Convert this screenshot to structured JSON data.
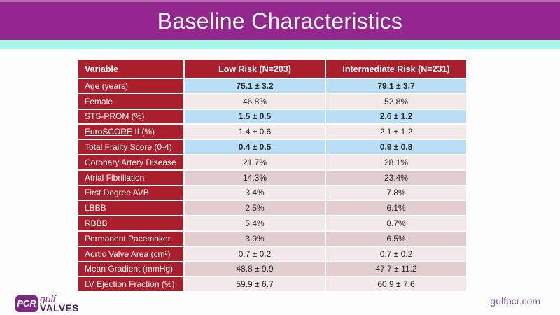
{
  "slide": {
    "title": "Baseline Characteristics",
    "footer_link": "gulfpcr.com",
    "logo": {
      "pcr": "PCR",
      "gulf": "gulf",
      "valves": "VALVES"
    }
  },
  "colors": {
    "title_bar": "#93278F",
    "title_bar_top": "#B768B3",
    "accent_strip": "#A5F7E8",
    "table_red": "#AB1E2C",
    "highlight_blue": "#BADEF5",
    "pink_light": "#F2E9E8",
    "pink_dark": "#E2CECE",
    "value_text": "#262626",
    "logo_purple": "#7B2982",
    "logo_gulf": "#8B3A97",
    "logo_dark": "#472562",
    "footer_purple": "#7E60A8"
  },
  "table": {
    "columns": [
      "Variable",
      "Low Risk (N=203)",
      "Intermediate Risk (N=231)"
    ],
    "rows": [
      {
        "label": "Age (years)",
        "low": "75.1 ± 3.2",
        "mid": "79.1 ± 3.7",
        "bold": true,
        "shade": "blue"
      },
      {
        "label": "Female",
        "low": "46.8%",
        "mid": "52.8%",
        "shade": "light"
      },
      {
        "label": "STS-PROM (%)",
        "low": "1.5 ± 0.5",
        "mid": "2.6 ± 1.2",
        "bold": true,
        "shade": "blue"
      },
      {
        "label": "EuroSCORE II (%)",
        "label_parts": [
          {
            "text": "EuroSCORE",
            "underline": true
          },
          {
            "text": " II (%)"
          }
        ],
        "low": "1.4 ± 0.6",
        "mid": "2.1 ± 1.2",
        "shade": "light"
      },
      {
        "label": "Total Frailty Score (0-4)",
        "low": "0.4 ± 0.5",
        "mid": "0.9 ± 0.8",
        "bold": true,
        "shade": "blue"
      },
      {
        "label": "Coronary Artery Disease",
        "low": "21.7%",
        "mid": "28.1%",
        "shade": "light"
      },
      {
        "label": "Atrial Fibrillation",
        "low": "14.3%",
        "mid": "23.4%",
        "shade": "dark"
      },
      {
        "label": "First Degree AVB",
        "low": "3.4%",
        "mid": "7.8%",
        "shade": "light"
      },
      {
        "label": "LBBB",
        "low": "2.5%",
        "mid": "6.1%",
        "shade": "dark"
      },
      {
        "label": "RBBB",
        "low": "5.4%",
        "mid": "8.7%",
        "shade": "light"
      },
      {
        "label": "Permanent Pacemaker",
        "low": "3.9%",
        "mid": "6.5%",
        "shade": "dark"
      },
      {
        "label": "Aortic Valve Area (cm²)",
        "low": "0.7 ± 0.2",
        "mid": "0.7 ± 0.2",
        "shade": "light"
      },
      {
        "label": "Mean Gradient (mmHg)",
        "low": "48.8 ± 9.9",
        "mid": "47.7 ± 11.2",
        "shade": "dark"
      },
      {
        "label": "LV Ejection Fraction (%)",
        "low": "59.9 ± 6.7",
        "mid": "60.9 ± 7.6",
        "shade": "light"
      }
    ]
  }
}
